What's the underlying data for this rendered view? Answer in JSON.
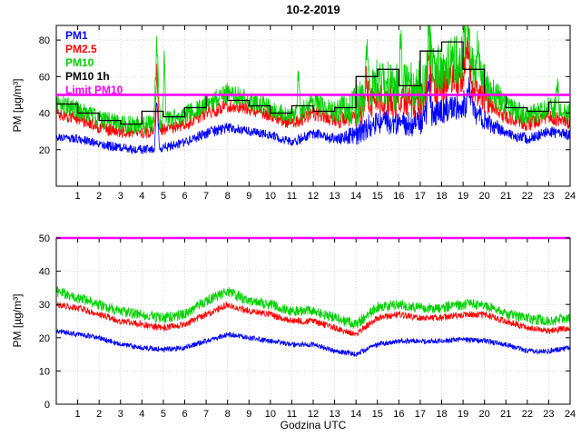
{
  "chart_data": [
    {
      "type": "line",
      "panel": "top",
      "title": "10-2-2019",
      "ylabel": "PM [µg/m³]",
      "xlim": [
        0,
        24
      ],
      "ylim": [
        0,
        88
      ],
      "xticks": [
        1,
        2,
        3,
        4,
        5,
        6,
        7,
        8,
        9,
        10,
        11,
        12,
        13,
        14,
        15,
        16,
        17,
        18,
        19,
        20,
        21,
        22,
        23,
        24
      ],
      "yticks": [
        20,
        40,
        60,
        80
      ],
      "grid": true,
      "legend_position": "top-left",
      "legend": [
        {
          "label": "PM1",
          "color": "#0000ff"
        },
        {
          "label": "PM2.5",
          "color": "#ff0000"
        },
        {
          "label": "PM10",
          "color": "#00d000"
        },
        {
          "label": "PM10 1h",
          "color": "#000000"
        },
        {
          "label": "Limit PM10",
          "color": "#ff00ff"
        }
      ],
      "x": [
        0,
        1,
        2,
        3,
        4,
        5,
        6,
        7,
        8,
        9,
        10,
        11,
        12,
        13,
        14,
        15,
        16,
        17,
        18,
        19,
        20,
        21,
        22,
        23,
        24
      ],
      "series": [
        {
          "name": "PM1",
          "color": "#0000ff",
          "style": "noisy",
          "values": [
            27,
            26,
            23,
            21,
            20,
            21,
            24,
            29,
            32,
            30,
            28,
            24,
            29,
            26,
            28,
            36,
            34,
            35,
            42,
            45,
            36,
            29,
            26,
            30,
            28
          ],
          "noise": [
            2.5,
            2.5,
            2.5,
            2.5,
            2.5,
            2.5,
            2.5,
            3,
            3,
            2.5,
            2.5,
            2.5,
            3,
            3,
            6,
            7,
            7,
            8,
            8,
            8,
            6,
            3,
            3,
            3,
            3
          ],
          "events": [
            {
              "t": 4.7,
              "p": 52,
              "w": 0.12
            },
            {
              "t": 17.4,
              "p": 60,
              "w": 0.15
            },
            {
              "t": 19.3,
              "p": 57,
              "w": 0.2
            }
          ]
        },
        {
          "name": "PM2.5",
          "color": "#ff0000",
          "style": "noisy",
          "values": [
            40,
            37,
            32,
            30,
            29,
            31,
            34,
            40,
            44,
            42,
            39,
            34,
            40,
            36,
            38,
            48,
            46,
            47,
            56,
            60,
            48,
            38,
            34,
            38,
            35
          ],
          "noise": [
            3.5,
            3.5,
            3.5,
            3.5,
            3.5,
            3.5,
            3.5,
            4,
            4,
            3.5,
            3.5,
            3.5,
            4,
            4,
            8,
            9,
            9,
            10,
            10,
            10,
            8,
            4,
            4,
            4,
            4
          ],
          "events": [
            {
              "t": 4.7,
              "p": 68,
              "w": 0.12
            },
            {
              "t": 14.5,
              "p": 62,
              "w": 0.1
            },
            {
              "t": 17.4,
              "p": 76,
              "w": 0.15
            },
            {
              "t": 19.2,
              "p": 79,
              "w": 0.22
            }
          ]
        },
        {
          "name": "PM10",
          "color": "#00d000",
          "style": "noisy",
          "values": [
            46,
            42,
            37,
            34,
            33,
            36,
            39,
            45,
            51,
            47,
            43,
            38,
            45,
            41,
            44,
            57,
            54,
            55,
            66,
            70,
            56,
            44,
            38,
            43,
            40
          ],
          "noise": [
            5,
            5,
            5,
            5,
            5,
            5,
            5,
            6,
            6,
            5,
            5,
            5,
            6,
            6,
            11,
            13,
            13,
            14,
            14,
            14,
            11,
            6,
            6,
            6,
            6
          ],
          "events": [
            {
              "t": 4.7,
              "p": 87,
              "w": 0.15
            },
            {
              "t": 5.05,
              "p": 80,
              "w": 0.08
            },
            {
              "t": 11.3,
              "p": 66,
              "w": 0.1
            },
            {
              "t": 14.5,
              "p": 85,
              "w": 0.1
            },
            {
              "t": 16.1,
              "p": 80,
              "w": 0.1
            },
            {
              "t": 17.4,
              "p": 87,
              "w": 0.2
            },
            {
              "t": 19.2,
              "p": 88,
              "w": 0.25
            },
            {
              "t": 19.7,
              "p": 86,
              "w": 0.12
            },
            {
              "t": 23.4,
              "p": 60,
              "w": 0.1
            }
          ]
        },
        {
          "name": "PM10 1h",
          "color": "#000000",
          "style": "step",
          "values": [
            45,
            40,
            36,
            34,
            41,
            38,
            43,
            50,
            47,
            44,
            40,
            44,
            41,
            43,
            60,
            64,
            55,
            74,
            79,
            64,
            50,
            43,
            41,
            46
          ]
        },
        {
          "name": "Limit PM10",
          "color": "#ff00ff",
          "style": "hline",
          "value": 50
        }
      ]
    },
    {
      "type": "line",
      "panel": "bottom",
      "xlabel": "Godzina UTC",
      "ylabel": "PM [µg/m³]",
      "xlim": [
        0,
        24
      ],
      "ylim": [
        0,
        50
      ],
      "xticks": [
        1,
        2,
        3,
        4,
        5,
        6,
        7,
        8,
        9,
        10,
        11,
        12,
        13,
        14,
        15,
        16,
        17,
        18,
        19,
        20,
        21,
        22,
        23,
        24
      ],
      "yticks": [
        0,
        10,
        20,
        30,
        40,
        50
      ],
      "grid": true,
      "x": [
        0,
        1,
        2,
        3,
        4,
        5,
        6,
        7,
        8,
        9,
        10,
        11,
        12,
        13,
        14,
        15,
        16,
        17,
        18,
        19,
        20,
        21,
        22,
        23,
        24
      ],
      "series": [
        {
          "name": "PM1",
          "color": "#0000ff",
          "style": "noisy",
          "values": [
            22,
            21,
            20,
            18,
            17,
            16.5,
            17,
            19,
            21,
            20,
            19,
            18,
            18,
            16,
            15,
            18,
            19,
            19,
            19,
            19.5,
            19,
            18,
            16,
            16,
            17
          ],
          "noise": 0.8
        },
        {
          "name": "PM2.5",
          "color": "#ff0000",
          "style": "noisy",
          "values": [
            30,
            29,
            27,
            25,
            24,
            23,
            24,
            27,
            30,
            28,
            27,
            25,
            25,
            23,
            21,
            26,
            27,
            26,
            26,
            27,
            27,
            25,
            23,
            22,
            23
          ],
          "noise": 1.0
        },
        {
          "name": "PM10",
          "color": "#00d000",
          "style": "noisy",
          "values": [
            34,
            32,
            30,
            28,
            27,
            26,
            27,
            31,
            34,
            31,
            30,
            28,
            28,
            26,
            24,
            29,
            30,
            29,
            29,
            30,
            30,
            27,
            26,
            25,
            26
          ],
          "noise": 1.6
        },
        {
          "name": "Limit PM10",
          "color": "#ff00ff",
          "style": "hline",
          "value": 50
        }
      ]
    }
  ]
}
